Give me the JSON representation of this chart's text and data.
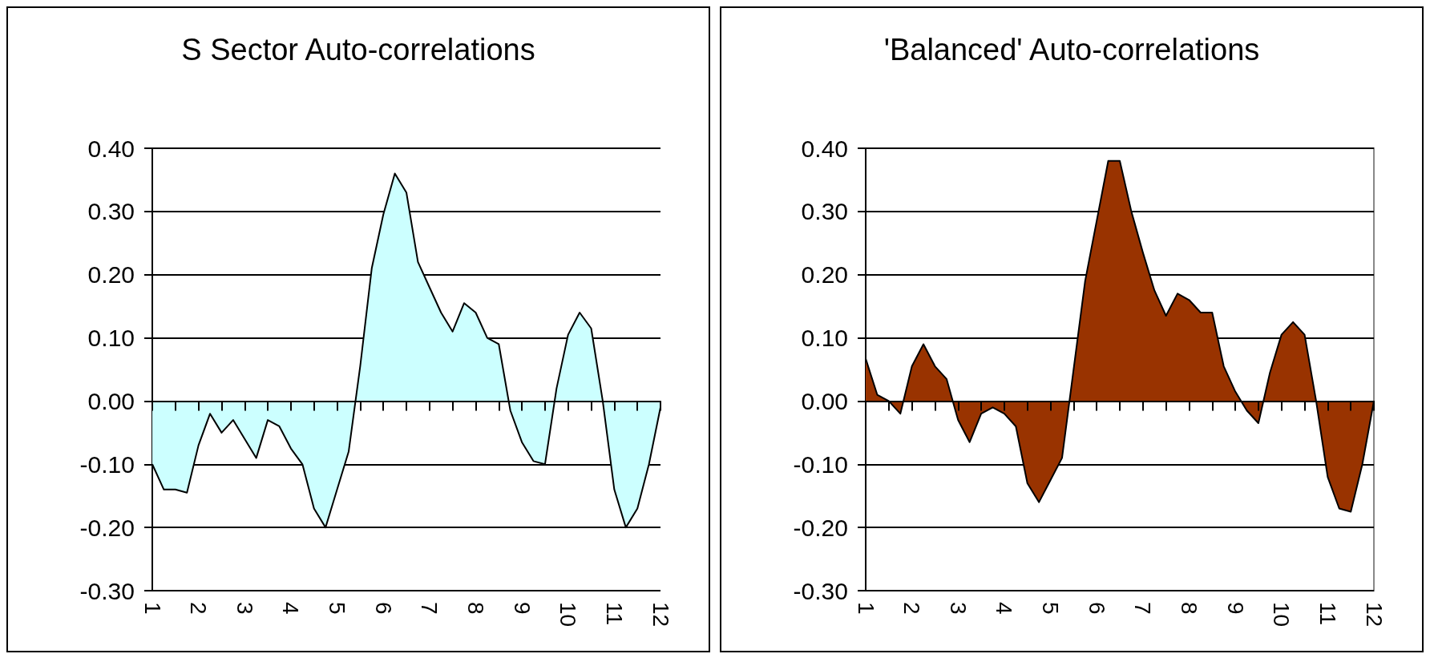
{
  "chart_data": [
    {
      "type": "area",
      "title": "S Sector Auto-correlations",
      "categories": [
        "1",
        null,
        null,
        null,
        "2",
        null,
        null,
        null,
        "3",
        null,
        null,
        null,
        "4",
        null,
        null,
        null,
        "5",
        null,
        null,
        null,
        "6",
        null,
        null,
        null,
        "7",
        null,
        null,
        null,
        "8",
        null,
        null,
        null,
        "9",
        null,
        null,
        null,
        "10",
        null,
        null,
        null,
        "11",
        null,
        null,
        null,
        "12"
      ],
      "series": [
        {
          "color": "#ccffff",
          "values": [
            -0.1,
            -0.14,
            -0.14,
            -0.145,
            -0.07,
            -0.02,
            -0.05,
            -0.03,
            -0.06,
            -0.09,
            -0.03,
            -0.04,
            -0.075,
            -0.1,
            -0.17,
            -0.2,
            -0.14,
            -0.08,
            0.055,
            0.21,
            0.295,
            0.36,
            0.33,
            0.22,
            0.18,
            0.14,
            0.11,
            0.155,
            0.14,
            0.1,
            0.09,
            -0.015,
            -0.065,
            -0.095,
            -0.1,
            0.02,
            0.105,
            0.14,
            0.115,
            0.0,
            -0.14,
            -0.2,
            -0.17,
            -0.1,
            -0.01
          ]
        }
      ],
      "ylim": [
        -0.3,
        0.4
      ],
      "yticks": [
        {
          "value": -0.3,
          "label": "-0.30"
        },
        {
          "value": -0.2,
          "label": "-0.20"
        },
        {
          "value": -0.1,
          "label": "-0.10"
        },
        {
          "value": 0,
          "label": "0.00"
        },
        {
          "value": 0.1,
          "label": "0.10"
        },
        {
          "value": 0.2,
          "label": "0.20"
        },
        {
          "value": 0.3,
          "label": "0.30"
        },
        {
          "value": 0.4,
          "label": "0.40"
        }
      ],
      "grid": "y"
    },
    {
      "type": "area",
      "title": "'Balanced' Auto-correlations",
      "categories": [
        "1",
        null,
        null,
        null,
        "2",
        null,
        null,
        null,
        "3",
        null,
        null,
        null,
        "4",
        null,
        null,
        null,
        "5",
        null,
        null,
        null,
        "6",
        null,
        null,
        null,
        "7",
        null,
        null,
        null,
        "8",
        null,
        null,
        null,
        "9",
        null,
        null,
        null,
        "10",
        null,
        null,
        null,
        "11",
        null,
        null,
        null,
        "12"
      ],
      "series": [
        {
          "color": "#993300",
          "values": [
            0.067,
            0.01,
            0.0,
            -0.02,
            0.055,
            0.09,
            0.055,
            0.035,
            -0.03,
            -0.065,
            -0.02,
            -0.01,
            -0.02,
            -0.04,
            -0.13,
            -0.16,
            -0.125,
            -0.09,
            0.05,
            0.19,
            0.285,
            0.38,
            0.38,
            0.3,
            0.235,
            0.175,
            0.135,
            0.17,
            0.16,
            0.14,
            0.14,
            0.055,
            0.015,
            -0.015,
            -0.035,
            0.045,
            0.105,
            0.125,
            0.105,
            0.0,
            -0.12,
            -0.17,
            -0.175,
            -0.1,
            0.0
          ]
        }
      ],
      "ylim": [
        -0.3,
        0.4
      ],
      "yticks": [
        {
          "value": -0.3,
          "label": "-0.30"
        },
        {
          "value": -0.2,
          "label": "-0.20"
        },
        {
          "value": -0.1,
          "label": "-0.10"
        },
        {
          "value": 0,
          "label": "0.00"
        },
        {
          "value": 0.1,
          "label": "0.10"
        },
        {
          "value": 0.2,
          "label": "0.20"
        },
        {
          "value": 0.3,
          "label": "0.30"
        },
        {
          "value": 0.4,
          "label": "0.40"
        }
      ],
      "grid": "y"
    }
  ]
}
